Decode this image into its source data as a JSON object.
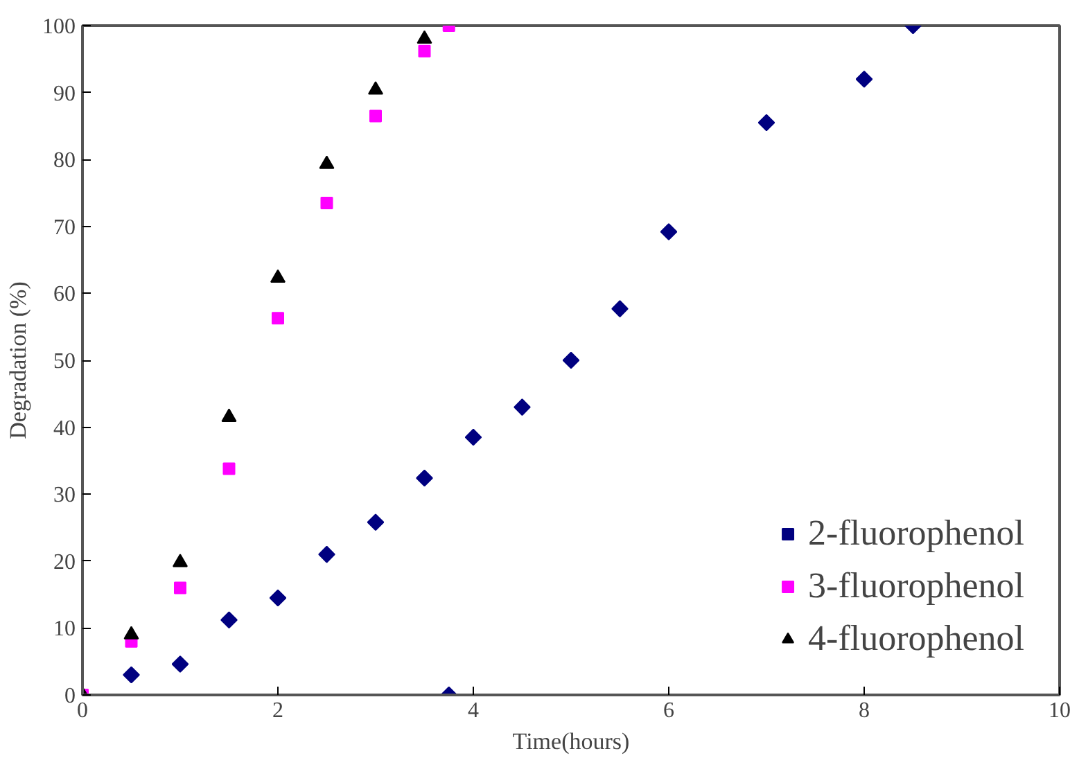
{
  "chart_data": {
    "type": "scatter",
    "xlabel": "Time(hours)",
    "ylabel": "Degradation (%)",
    "xlim": [
      0,
      10
    ],
    "ylim": [
      0,
      100
    ],
    "xticks": [
      0,
      2,
      4,
      6,
      8,
      10
    ],
    "yticks": [
      0,
      10,
      20,
      30,
      40,
      50,
      60,
      70,
      80,
      90,
      100
    ],
    "grid": false,
    "legend": "bottom right",
    "series": [
      {
        "name": "2-fluorophenol",
        "color": "#000080",
        "marker": "diamond",
        "x": [
          0.5,
          1,
          1.5,
          2,
          2.5,
          3,
          3.5,
          3.75,
          4,
          4.5,
          5,
          5.5,
          6,
          7,
          8,
          8.5
        ],
        "values": [
          3,
          4.6,
          11.2,
          14.5,
          21,
          25.8,
          32.4,
          0,
          38.5,
          43,
          50,
          57.7,
          69.2,
          85.5,
          92,
          100
        ]
      },
      {
        "name": "3-fluorophenol",
        "color": "#ff00ff",
        "marker": "square",
        "x": [
          0,
          0.5,
          1,
          1.5,
          2,
          2.5,
          3,
          3.5,
          3.75
        ],
        "values": [
          0,
          8,
          16,
          33.8,
          56.3,
          73.5,
          86.5,
          96.2,
          100
        ]
      },
      {
        "name": "4-fluorophenol",
        "color": "#000000",
        "marker": "triangle",
        "x": [
          0,
          0.5,
          1,
          1.5,
          2,
          2.5,
          3,
          3.5
        ],
        "values": [
          0,
          9,
          19.8,
          41.5,
          62.3,
          79.3,
          90.4,
          98
        ]
      }
    ]
  }
}
